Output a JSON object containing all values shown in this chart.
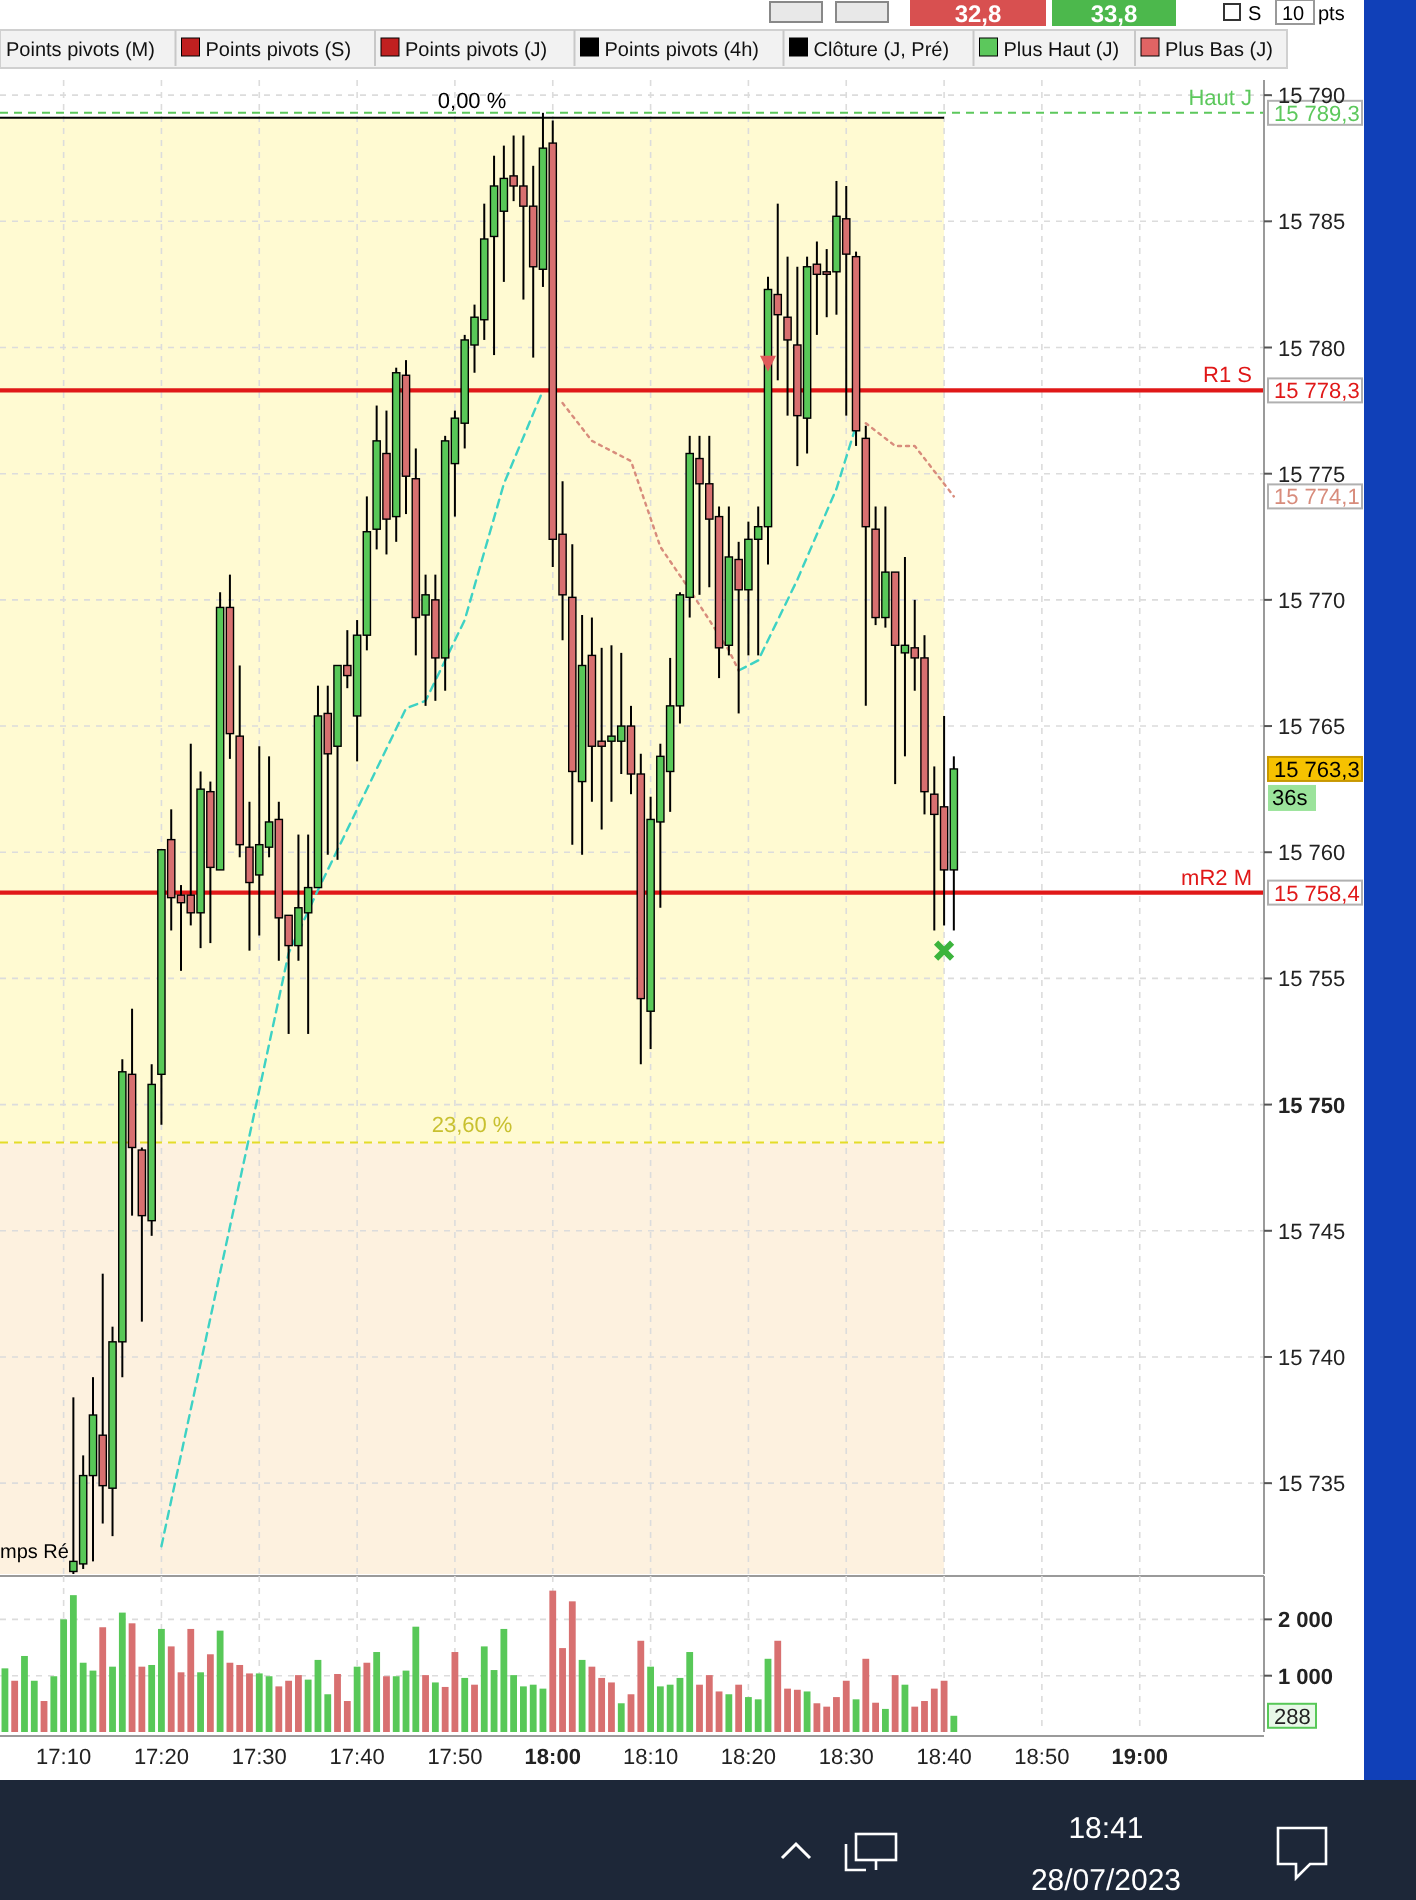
{
  "chart_data": [
    {
      "type": "candlestick",
      "tick_labels": "y",
      "grid": true,
      "xlim": [
        17.0583,
        19.2117
      ],
      "ylim": [
        15731.4,
        15790.6
      ],
      "xticks": [
        {
          "value": 17.1667,
          "label": null
        },
        {
          "value": 17.3333,
          "label": null
        },
        {
          "value": 17.5,
          "label": null
        },
        {
          "value": 17.6667,
          "label": null
        },
        {
          "value": 17.8333,
          "label": null
        },
        {
          "value": 18,
          "label": null
        },
        {
          "value": 18.1667,
          "label": null
        },
        {
          "value": 18.3333,
          "label": null
        },
        {
          "value": 18.5,
          "label": null
        },
        {
          "value": 18.6667,
          "label": null
        },
        {
          "value": 18.8333,
          "label": null
        },
        {
          "value": 19,
          "label": null
        }
      ],
      "yticks": [
        {
          "value": 15735,
          "label": "15 735"
        },
        {
          "value": 15740,
          "label": "15 740"
        },
        {
          "value": 15745,
          "label": "15 745"
        },
        {
          "value": 15750,
          "label": "15 750"
        },
        {
          "value": 15755,
          "label": "15 755"
        },
        {
          "value": 15760,
          "label": "15 760"
        },
        {
          "value": 15765,
          "label": "15 765"
        },
        {
          "value": 15770,
          "label": "15 770"
        },
        {
          "value": 15775,
          "label": "15 775"
        },
        {
          "value": 15780,
          "label": "15 780"
        },
        {
          "value": 15785,
          "label": "15 785"
        },
        {
          "value": 15790,
          "label": "15 790"
        }
      ],
      "x": [
        17.1833,
        17.2,
        17.2167,
        17.2333,
        17.25,
        17.2667,
        17.2833,
        17.3,
        17.3167,
        17.3333,
        17.35,
        17.3667,
        17.3833,
        17.4,
        17.4167,
        17.4333,
        17.45,
        17.4667,
        17.4833,
        17.5,
        17.5167,
        17.5333,
        17.55,
        17.5667,
        17.5833,
        17.6,
        17.6167,
        17.6333,
        17.65,
        17.6667,
        17.6833,
        17.7,
        17.7167,
        17.7333,
        17.75,
        17.7667,
        17.7833,
        17.8,
        17.8167,
        17.8333,
        17.85,
        17.8667,
        17.8833,
        17.9,
        17.9167,
        17.9333,
        17.95,
        17.9667,
        17.9833,
        18,
        18.0167,
        18.0333,
        18.05,
        18.0667,
        18.0833,
        18.1,
        18.1167,
        18.1333,
        18.15,
        18.1667,
        18.1833,
        18.2,
        18.2167,
        18.2333,
        18.25,
        18.2667,
        18.2833,
        18.3,
        18.3167,
        18.3333,
        18.35,
        18.3667,
        18.3833,
        18.4,
        18.4167,
        18.4333,
        18.45,
        18.4667,
        18.4833,
        18.5,
        18.5167,
        18.5333,
        18.55,
        18.5667,
        18.5833,
        18.6,
        18.6167,
        18.6333,
        18.65,
        18.6667,
        18.6833
      ],
      "ohlc": [
        [
          15731.5,
          15738.4,
          15731.4,
          15731.9
        ],
        [
          15731.8,
          15736.1,
          15731.6,
          15735.3
        ],
        [
          15735.3,
          15739.2,
          15731.9,
          15737.7
        ],
        [
          15736.9,
          15743.3,
          15733.4,
          15734.9
        ],
        [
          15734.8,
          15741.2,
          15732.9,
          15740.6
        ],
        [
          15740.6,
          15751.8,
          15739.2,
          15751.3
        ],
        [
          15751.2,
          15753.8,
          15745.6,
          15748.3
        ],
        [
          15748.2,
          15748.3,
          15741.4,
          15745.6
        ],
        [
          15745.4,
          15751.6,
          15744.8,
          15750.8
        ],
        [
          15751.2,
          15760.1,
          15749.2,
          15760.1
        ],
        [
          15760.5,
          15761.7,
          15756.9,
          15758.2
        ],
        [
          15758.3,
          15758.7,
          15755.3,
          15758.0
        ],
        [
          15758.3,
          15764.3,
          15757.1,
          15757.6
        ],
        [
          15757.6,
          15763.2,
          15756.2,
          15762.5
        ],
        [
          15762.4,
          15762.8,
          15756.4,
          15759.4
        ],
        [
          15759.3,
          15770.3,
          15759.3,
          15769.7
        ],
        [
          15769.7,
          15771.0,
          15763.7,
          15764.7
        ],
        [
          15764.6,
          15767.4,
          15759.8,
          15760.3
        ],
        [
          15760.2,
          15762.0,
          15756.1,
          15758.8
        ],
        [
          15759.1,
          15764.2,
          15756.7,
          15760.3
        ],
        [
          15760.2,
          15763.8,
          15759.8,
          15761.2
        ],
        [
          15761.3,
          15762.0,
          15755.7,
          15757.4
        ],
        [
          15757.5,
          15757.5,
          15752.8,
          15756.3
        ],
        [
          15756.3,
          15760.7,
          15755.7,
          15757.8
        ],
        [
          15757.6,
          15760.7,
          15752.8,
          15758.6
        ],
        [
          15758.6,
          15766.6,
          15758.6,
          15765.4
        ],
        [
          15765.5,
          15766.6,
          15759.9,
          15763.9
        ],
        [
          15764.2,
          15767.4,
          15759.7,
          15767.4
        ],
        [
          15767.4,
          15768.8,
          15766.5,
          15767.0
        ],
        [
          15765.4,
          15769.2,
          15763.6,
          15768.6
        ],
        [
          15768.6,
          15774.1,
          15768.0,
          15772.7
        ],
        [
          15772.8,
          15777.7,
          15772.0,
          15776.3
        ],
        [
          15775.8,
          15777.5,
          15771.8,
          15773.2
        ],
        [
          15773.3,
          15779.2,
          15772.3,
          15779.0
        ],
        [
          15778.9,
          15779.5,
          15773.4,
          15774.9
        ],
        [
          15774.8,
          15776.0,
          15767.8,
          15769.3
        ],
        [
          15769.4,
          15771.0,
          15765.8,
          15770.2
        ],
        [
          15770.0,
          15771.0,
          15766.0,
          15767.7
        ],
        [
          15767.7,
          15776.5,
          15766.4,
          15776.3
        ],
        [
          15775.4,
          15777.5,
          15773.3,
          15777.2
        ],
        [
          15777.0,
          15780.5,
          15776.0,
          15780.3
        ],
        [
          15780.1,
          15781.7,
          15779.0,
          15781.2
        ],
        [
          15781.1,
          15785.7,
          15780.3,
          15784.3
        ],
        [
          15784.4,
          15787.6,
          15779.7,
          15786.4
        ],
        [
          15785.4,
          15788.0,
          15782.6,
          15786.7
        ],
        [
          15786.8,
          15788.4,
          15785.8,
          15786.4
        ],
        [
          15786.4,
          15788.4,
          15781.9,
          15785.6
        ],
        [
          15785.6,
          15787.2,
          15779.6,
          15783.2
        ],
        [
          15783.1,
          15789.3,
          15782.4,
          15787.9
        ],
        [
          15788.1,
          15789.0,
          15771.3,
          15772.4
        ],
        [
          15772.6,
          15774.7,
          15768.4,
          15770.2
        ],
        [
          15770.1,
          15772.2,
          15760.3,
          15763.2
        ],
        [
          15762.8,
          15769.4,
          15759.9,
          15767.4
        ],
        [
          15767.8,
          15769.3,
          15762.0,
          15764.2
        ],
        [
          15764.4,
          15768.1,
          15760.9,
          15764.2
        ],
        [
          15764.4,
          15768.2,
          15762.0,
          15764.6
        ],
        [
          15764.4,
          15767.9,
          15763.1,
          15765.0
        ],
        [
          15765.0,
          15765.8,
          15762.3,
          15763.1
        ],
        [
          15763.1,
          15763.9,
          15751.6,
          15754.2
        ],
        [
          15753.7,
          15762.2,
          15752.2,
          15761.3
        ],
        [
          15761.2,
          15764.3,
          15757.8,
          15763.8
        ],
        [
          15763.2,
          15767.7,
          15761.6,
          15765.8
        ],
        [
          15765.8,
          15770.3,
          15765.1,
          15770.2
        ],
        [
          15770.1,
          15776.5,
          15769.3,
          15775.8
        ],
        [
          15775.6,
          15776.5,
          15770.2,
          15774.6
        ],
        [
          15774.6,
          15776.5,
          15770.5,
          15773.2
        ],
        [
          15773.3,
          15773.7,
          15766.9,
          15768.1
        ],
        [
          15768.2,
          15773.7,
          15767.8,
          15771.7
        ],
        [
          15771.6,
          15772.3,
          15765.5,
          15770.4
        ],
        [
          15770.4,
          15773.1,
          15767.8,
          15772.4
        ],
        [
          15772.4,
          15773.7,
          15767.8,
          15772.9
        ],
        [
          15772.9,
          15782.8,
          15771.4,
          15782.3
        ],
        [
          15782.1,
          15785.7,
          15778.7,
          15781.3
        ],
        [
          15781.2,
          15783.6,
          15777.3,
          15780.3
        ],
        [
          15780.1,
          15783.2,
          15775.3,
          15777.3
        ],
        [
          15777.2,
          15783.6,
          15775.8,
          15783.2
        ],
        [
          15783.3,
          15784.2,
          15780.5,
          15782.9
        ],
        [
          15783.0,
          15783.9,
          15781.2,
          15782.9
        ],
        [
          15783.0,
          15786.6,
          15781.3,
          15785.2
        ],
        [
          15785.1,
          15786.4,
          15777.3,
          15783.7
        ],
        [
          15783.6,
          15783.8,
          15776.1,
          15776.7
        ],
        [
          15776.4,
          15776.9,
          15765.8,
          15772.9
        ],
        [
          15772.8,
          15773.7,
          15769.0,
          15769.3
        ],
        [
          15769.3,
          15773.7,
          15768.9,
          15771.1
        ],
        [
          15771.1,
          15771.1,
          15762.7,
          15768.2
        ],
        [
          15767.9,
          15771.7,
          15763.8,
          15768.2
        ],
        [
          15768.1,
          15770.0,
          15766.4,
          15767.7
        ],
        [
          15767.7,
          15768.6,
          15761.5,
          15762.4
        ],
        [
          15762.3,
          15763.4,
          15756.9,
          15761.5
        ],
        [
          15761.8,
          15765.4,
          15757.1,
          15759.3
        ],
        [
          15759.3,
          15763.8,
          15756.9,
          15763.3
        ]
      ],
      "colors": [
        "#58c858",
        "#58c858",
        "#58c858",
        "#d87070",
        "#58c858",
        "#58c858",
        "#d87070",
        "#d87070",
        "#58c858",
        "#58c858",
        "#d87070",
        "#d87070",
        "#d87070",
        "#58c858",
        "#d87070",
        "#58c858",
        "#d87070",
        "#d87070",
        "#d87070",
        "#58c858",
        "#58c858",
        "#d87070",
        "#d87070",
        "#58c858",
        "#58c858",
        "#58c858",
        "#d87070",
        "#58c858",
        "#d87070",
        "#58c858",
        "#58c858",
        "#58c858",
        "#d87070",
        "#58c858",
        "#d87070",
        "#d87070",
        "#58c858",
        "#d87070",
        "#58c858",
        "#58c858",
        "#58c858",
        "#58c858",
        "#58c858",
        "#58c858",
        "#58c858",
        "#d87070",
        "#d87070",
        "#d87070",
        "#58c858",
        "#d87070",
        "#d87070",
        "#d87070",
        "#58c858",
        "#d87070",
        "#d87070",
        "#58c858",
        "#58c858",
        "#d87070",
        "#d87070",
        "#58c858",
        "#58c858",
        "#58c858",
        "#58c858",
        "#58c858",
        "#d87070",
        "#d87070",
        "#d87070",
        "#58c858",
        "#d87070",
        "#58c858",
        "#58c858",
        "#58c858",
        "#d87070",
        "#d87070",
        "#d87070",
        "#58c858",
        "#d87070",
        "#d87070",
        "#58c858",
        "#d87070",
        "#d87070",
        "#d87070",
        "#d87070",
        "#58c858",
        "#d87070",
        "#58c858",
        "#d87070",
        "#d87070",
        "#d87070",
        "#d87070",
        "#58c858"
      ],
      "series": [
        {
          "type": "line",
          "color": "#3ed2c4",
          "line_style": "dashed",
          "x": [
            17.3333,
            17.55,
            17.6,
            17.75,
            17.7833,
            17.8167,
            17.85,
            17.9167,
            17.9833,
            18.1667,
            18.3167,
            18.35,
            18.4167,
            18.4833,
            18.5167
          ],
          "values": [
            15732.5,
            15756.0,
            15758.5,
            15765.7,
            15766.0,
            15767.6,
            15769.2,
            15774.6,
            15778.3,
            null,
            15767.2,
            15767.6,
            15770.8,
            15774.4,
            15776.9
          ]
        },
        {
          "type": "line",
          "color": "#d88c7c",
          "line_style": "dotted",
          "x": [
            18.0167,
            18.0667,
            18.1333,
            18.1833,
            18.2333,
            18.3,
            18.3167,
            18.4167,
            18.5333,
            18.5833,
            18.6167,
            18.6667,
            18.6833
          ],
          "values": [
            15777.8,
            15776.3,
            15775.5,
            15772.1,
            15770.4,
            15768.0,
            15767.2,
            null,
            15777.0,
            15776.1,
            15776.1,
            15774.6,
            15774.1
          ]
        },
        {
          "type": "scatter",
          "marker": "triangle",
          "color": "#e05a5a",
          "x": [
            18.3667
          ],
          "values": [
            15779.2
          ]
        },
        {
          "type": "scatter",
          "marker": "cross",
          "color": "#3cb43c",
          "x": [
            18.6667
          ],
          "values": [
            15756.1
          ]
        }
      ],
      "bands": [
        {
          "axis": "y",
          "from": 15748.5,
          "to": 15789.1,
          "color": "#fffad2"
        },
        {
          "axis": "y",
          "from": 15731.4,
          "to": 15748.5,
          "color": "#fdf1df"
        }
      ],
      "ref_lines": [
        {
          "axis": "y",
          "value": 15789.3,
          "label": "Haut J",
          "color": "#5cc85c",
          "line_style": "dashed"
        },
        {
          "axis": "y",
          "value": 15778.3,
          "label": "R1 S",
          "color": "#e01818"
        },
        {
          "axis": "y",
          "value": 15758.4,
          "label": "mR2 M",
          "color": "#e01818"
        },
        {
          "axis": "y",
          "value": 15789.1,
          "color": "#000000"
        },
        {
          "axis": "y",
          "value": 15748.5,
          "color": "#e4dc28",
          "line_style": "dashed"
        }
      ],
      "annotations": [
        {
          "text": "0,00 %",
          "y": 15789.1
        },
        {
          "text": "23,60 %",
          "y": 15748.5
        },
        "15 789,3",
        "15 778,3",
        "15 758,4",
        "15 763,3",
        "36s",
        "mps Ré",
        "15 774,1"
      ]
    },
    {
      "type": "bar",
      "grid": true,
      "xlim": [
        17.0583,
        19.2117
      ],
      "ylim": [
        0,
        2770
      ],
      "xticks": [
        {
          "value": 17.1667,
          "label": "17:10"
        },
        {
          "value": 17.3333,
          "label": "17:20"
        },
        {
          "value": 17.5,
          "label": "17:30"
        },
        {
          "value": 17.6667,
          "label": "17:40"
        },
        {
          "value": 17.8333,
          "label": "17:50"
        },
        {
          "value": 18,
          "label": "18:00"
        },
        {
          "value": 18.1667,
          "label": "18:10"
        },
        {
          "value": 18.3333,
          "label": "18:20"
        },
        {
          "value": 18.5,
          "label": "18:30"
        },
        {
          "value": 18.6667,
          "label": "18:40"
        },
        {
          "value": 18.8333,
          "label": "18:50"
        },
        {
          "value": 19,
          "label": "19:00"
        }
      ],
      "yticks": [
        {
          "value": 1000,
          "label": "1 000"
        },
        {
          "value": 2000,
          "label": "2 000"
        }
      ],
      "x": [
        17.0667,
        17.0833,
        17.1,
        17.1167,
        17.1333,
        17.15,
        17.1667,
        17.1833,
        17.2,
        17.2167,
        17.2333,
        17.25,
        17.2667,
        17.2833,
        17.3,
        17.3167,
        17.3333,
        17.35,
        17.3667,
        17.3833,
        17.4,
        17.4167,
        17.4333,
        17.45,
        17.4667,
        17.4833,
        17.5,
        17.5167,
        17.5333,
        17.55,
        17.5667,
        17.5833,
        17.6,
        17.6167,
        17.6333,
        17.65,
        17.6667,
        17.6833,
        17.7,
        17.7167,
        17.7333,
        17.75,
        17.7667,
        17.7833,
        17.8,
        17.8167,
        17.8333,
        17.85,
        17.8667,
        17.8833,
        17.9,
        17.9167,
        17.9333,
        17.95,
        17.9667,
        17.9833,
        18,
        18.0167,
        18.0333,
        18.05,
        18.0667,
        18.0833,
        18.1,
        18.1167,
        18.1333,
        18.15,
        18.1667,
        18.1833,
        18.2,
        18.2167,
        18.2333,
        18.25,
        18.2667,
        18.2833,
        18.3,
        18.3167,
        18.3333,
        18.35,
        18.3667,
        18.3833,
        18.4,
        18.4167,
        18.4333,
        18.45,
        18.4667,
        18.4833,
        18.5,
        18.5167,
        18.5333,
        18.55,
        18.5667,
        18.5833,
        18.6,
        18.6167,
        18.6333,
        18.65,
        18.6667,
        18.6833
      ],
      "values": [
        1130,
        910,
        1350,
        910,
        550,
        990,
        2000,
        2430,
        1230,
        1090,
        1860,
        1160,
        2120,
        1930,
        1160,
        1190,
        1830,
        1520,
        1060,
        1830,
        1060,
        1380,
        1800,
        1230,
        1190,
        1040,
        1040,
        990,
        810,
        910,
        1010,
        930,
        1280,
        670,
        1030,
        550,
        1160,
        1230,
        1420,
        990,
        990,
        1090,
        1870,
        1010,
        880,
        800,
        1420,
        960,
        840,
        1520,
        1100,
        1830,
        1010,
        810,
        840,
        770,
        2510,
        1490,
        2320,
        1280,
        1160,
        960,
        880,
        510,
        670,
        1620,
        1160,
        810,
        840,
        960,
        1420,
        840,
        1010,
        720,
        670,
        840,
        620,
        580,
        1300,
        1620,
        770,
        750,
        720,
        510,
        450,
        620,
        910,
        580,
        1300,
        520,
        410,
        1010,
        840,
        450,
        550,
        770,
        910,
        288
      ],
      "annotations": [
        "288"
      ],
      "colors": [
        "#58c858",
        "#d87070",
        "#58c858",
        "#58c858",
        "#d87070",
        "#58c858",
        "#58c858",
        "#58c858",
        "#58c858",
        "#58c858",
        "#d87070",
        "#58c858",
        "#58c858",
        "#d87070",
        "#d87070",
        "#58c858",
        "#58c858",
        "#d87070",
        "#d87070",
        "#d87070",
        "#58c858",
        "#d87070",
        "#58c858",
        "#d87070",
        "#d87070",
        "#d87070",
        "#58c858",
        "#58c858",
        "#d87070",
        "#d87070",
        "#d87070",
        "#58c858",
        "#58c858",
        "#58c858",
        "#d87070",
        "#d87070",
        "#58c858",
        "#d87070",
        "#58c858",
        "#d87070",
        "#58c858",
        "#58c858",
        "#58c858",
        "#d87070",
        "#58c858",
        "#d87070",
        "#d87070",
        "#58c858",
        "#d87070",
        "#58c858",
        "#58c858",
        "#58c858",
        "#58c858",
        "#58c858",
        "#58c858",
        "#58c858",
        "#d87070",
        "#d87070",
        "#d87070",
        "#58c858",
        "#d87070",
        "#d87070",
        "#d87070",
        "#58c858",
        "#d87070",
        "#d87070",
        "#58c858",
        "#58c858",
        "#58c858",
        "#58c858",
        "#58c858",
        "#d87070",
        "#d87070",
        "#d87070",
        "#58c858",
        "#d87070",
        "#58c858",
        "#58c858",
        "#58c858",
        "#d87070",
        "#d87070",
        "#d87070",
        "#58c858",
        "#d87070",
        "#d87070",
        "#d87070",
        "#d87070",
        "#58c858",
        "#d87070",
        "#d87070",
        "#58c858",
        "#d87070",
        "#58c858",
        "#d87070",
        "#d87070",
        "#d87070",
        "#d87070",
        "#58c858"
      ]
    },
    {
      "type": "other",
      "colors": [
        null,
        "#c02020",
        "#c02020",
        "#000000",
        "#000000",
        "#5cc85c",
        "#e06464"
      ],
      "annotations": [
        "Points pivots (M)",
        "Points pivots (S)",
        "Points pivots (J)",
        "Points pivots (4h)",
        "Clôture (J, Pré)",
        "Plus Haut (J)",
        "Plus Bas (J)",
        "32,8",
        "33,8",
        "S",
        "10",
        "pts"
      ]
    },
    {
      "type": "other",
      "annotations": [
        "18:41",
        "28/07/2023"
      ]
    }
  ]
}
